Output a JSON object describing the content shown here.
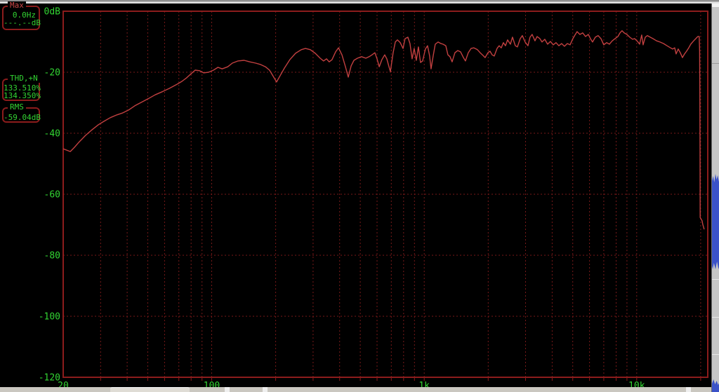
{
  "colors": {
    "background": "#000000",
    "grid": "#781919",
    "border": "#8c1c1c",
    "curve": "#c24040",
    "label_green": "#32d332",
    "label_red": "#cc4747",
    "sliver_blue": "#3b52c8"
  },
  "info_boxes": {
    "max": {
      "label": "Max",
      "freq": "0.0Hz",
      "level": "---.--dB"
    },
    "thd": {
      "label": "THD,+N",
      "value1": "133.510%",
      "value2": "134.350%"
    },
    "rms": {
      "label": "RMS",
      "value": "-59.04dB"
    }
  },
  "chart_data": {
    "type": "line",
    "title": "",
    "x_scale": "log",
    "xlim": [
      20,
      21600
    ],
    "ylim": [
      -120,
      0
    ],
    "grid": "dotted",
    "x_ticks": [
      {
        "f": 20,
        "label": "20"
      },
      {
        "f": 100,
        "label": "100"
      },
      {
        "f": 1000,
        "label": "1k"
      },
      {
        "f": 10000,
        "label": "10k"
      }
    ],
    "y_ticks": [
      {
        "db": 0,
        "label": "0dB"
      },
      {
        "db": -20,
        "label": "-20"
      },
      {
        "db": -40,
        "label": "-40"
      },
      {
        "db": -60,
        "label": "-60"
      },
      {
        "db": -80,
        "label": "-80"
      },
      {
        "db": -100,
        "label": "-100"
      },
      {
        "db": -120,
        "label": "-120"
      }
    ],
    "v_gridlines": [
      30,
      40,
      50,
      60,
      70,
      80,
      90,
      100,
      200,
      300,
      400,
      500,
      600,
      700,
      800,
      900,
      1000,
      2000,
      3000,
      4000,
      5000,
      6000,
      7000,
      8000,
      9000,
      10000,
      20000
    ],
    "h_gridlines": [
      -20,
      -40,
      -60,
      -80,
      -100
    ],
    "series": [
      {
        "name": "spectrum",
        "points": [
          [
            20,
            -45.1
          ],
          [
            21.6,
            -46.0
          ],
          [
            22.6,
            -44.6
          ],
          [
            23.8,
            -42.8
          ],
          [
            25.5,
            -40.7
          ],
          [
            27.3,
            -38.9
          ],
          [
            29.3,
            -37.2
          ],
          [
            31.1,
            -36.1
          ],
          [
            33.3,
            -34.9
          ],
          [
            35.7,
            -34.0
          ],
          [
            38.2,
            -33.3
          ],
          [
            40.6,
            -32.4
          ],
          [
            43.5,
            -31.0
          ],
          [
            46.5,
            -29.9
          ],
          [
            50.2,
            -28.7
          ],
          [
            54.2,
            -27.4
          ],
          [
            58.5,
            -26.4
          ],
          [
            63.1,
            -25.3
          ],
          [
            68.1,
            -24.1
          ],
          [
            72.4,
            -23.0
          ],
          [
            76.3,
            -21.8
          ],
          [
            79.9,
            -20.5
          ],
          [
            83.6,
            -19.3
          ],
          [
            87.5,
            -19.5
          ],
          [
            91.6,
            -20.2
          ],
          [
            96.6,
            -20.0
          ],
          [
            102,
            -19.3
          ],
          [
            107,
            -18.4
          ],
          [
            112,
            -18.9
          ],
          [
            119,
            -18.2
          ],
          [
            125,
            -17.0
          ],
          [
            133,
            -16.3
          ],
          [
            142,
            -16.1
          ],
          [
            151,
            -16.6
          ],
          [
            161,
            -17.0
          ],
          [
            170,
            -17.5
          ],
          [
            179,
            -18.2
          ],
          [
            187,
            -19.3
          ],
          [
            195,
            -21.4
          ],
          [
            202,
            -23.2
          ],
          [
            210,
            -21.1
          ],
          [
            220,
            -18.6
          ],
          [
            233,
            -15.9
          ],
          [
            248,
            -13.8
          ],
          [
            264,
            -12.6
          ],
          [
            276,
            -12.2
          ],
          [
            291,
            -12.6
          ],
          [
            307,
            -13.8
          ],
          [
            324,
            -15.4
          ],
          [
            336,
            -16.3
          ],
          [
            347,
            -15.6
          ],
          [
            357,
            -16.6
          ],
          [
            368,
            -15.9
          ],
          [
            383,
            -13.3
          ],
          [
            395,
            -12.0
          ],
          [
            410,
            -14.3
          ],
          [
            426,
            -18.2
          ],
          [
            439,
            -21.6
          ],
          [
            453,
            -17.9
          ],
          [
            467,
            -16.1
          ],
          [
            485,
            -15.4
          ],
          [
            507,
            -14.9
          ],
          [
            531,
            -15.4
          ],
          [
            551,
            -14.9
          ],
          [
            568,
            -14.3
          ],
          [
            586,
            -13.6
          ],
          [
            600,
            -15.6
          ],
          [
            614,
            -18.2
          ],
          [
            632,
            -15.9
          ],
          [
            652,
            -14.3
          ],
          [
            667,
            -15.6
          ],
          [
            683,
            -18.2
          ],
          [
            693,
            -19.8
          ],
          [
            714,
            -13.6
          ],
          [
            731,
            -10.1
          ],
          [
            748,
            -9.4
          ],
          [
            771,
            -10.3
          ],
          [
            795,
            -12.2
          ],
          [
            813,
            -9.0
          ],
          [
            838,
            -8.5
          ],
          [
            857,
            -10.6
          ],
          [
            877,
            -15.6
          ],
          [
            897,
            -12.2
          ],
          [
            918,
            -16.1
          ],
          [
            939,
            -11.7
          ],
          [
            961,
            -16.8
          ],
          [
            983,
            -16.3
          ],
          [
            1013,
            -12.4
          ],
          [
            1037,
            -11.3
          ],
          [
            1061,
            -14.7
          ],
          [
            1077,
            -18.9
          ],
          [
            1102,
            -14.7
          ],
          [
            1127,
            -10.8
          ],
          [
            1162,
            -10.1
          ],
          [
            1198,
            -10.6
          ],
          [
            1226,
            -10.8
          ],
          [
            1264,
            -11.3
          ],
          [
            1293,
            -14.3
          ],
          [
            1323,
            -14.9
          ],
          [
            1353,
            -16.6
          ],
          [
            1395,
            -13.6
          ],
          [
            1438,
            -12.9
          ],
          [
            1483,
            -13.3
          ],
          [
            1529,
            -15.2
          ],
          [
            1564,
            -16.3
          ],
          [
            1612,
            -13.6
          ],
          [
            1662,
            -12.2
          ],
          [
            1713,
            -12.0
          ],
          [
            1780,
            -12.6
          ],
          [
            1835,
            -13.6
          ],
          [
            1892,
            -14.5
          ],
          [
            1935,
            -15.2
          ],
          [
            1995,
            -13.6
          ],
          [
            2041,
            -13.1
          ],
          [
            2088,
            -14.3
          ],
          [
            2136,
            -14.7
          ],
          [
            2202,
            -12.2
          ],
          [
            2253,
            -11.3
          ],
          [
            2305,
            -12.0
          ],
          [
            2358,
            -10.3
          ],
          [
            2413,
            -11.3
          ],
          [
            2468,
            -9.4
          ],
          [
            2545,
            -10.8
          ],
          [
            2603,
            -8.5
          ],
          [
            2684,
            -11.3
          ],
          [
            2746,
            -11.7
          ],
          [
            2831,
            -9.0
          ],
          [
            2896,
            -8.0
          ],
          [
            2985,
            -10.1
          ],
          [
            3078,
            -11.3
          ],
          [
            3149,
            -8.5
          ],
          [
            3222,
            -7.6
          ],
          [
            3321,
            -9.7
          ],
          [
            3398,
            -8.3
          ],
          [
            3503,
            -9.0
          ],
          [
            3584,
            -10.1
          ],
          [
            3695,
            -9.2
          ],
          [
            3809,
            -10.8
          ],
          [
            3926,
            -9.9
          ],
          [
            4048,
            -11.0
          ],
          [
            4173,
            -10.3
          ],
          [
            4302,
            -11.3
          ],
          [
            4434,
            -10.6
          ],
          [
            4571,
            -11.5
          ],
          [
            4712,
            -10.6
          ],
          [
            4859,
            -11.0
          ],
          [
            5009,
            -9.0
          ],
          [
            5124,
            -7.8
          ],
          [
            5242,
            -6.7
          ],
          [
            5404,
            -7.6
          ],
          [
            5571,
            -7.1
          ],
          [
            5744,
            -8.3
          ],
          [
            5922,
            -7.6
          ],
          [
            6057,
            -9.0
          ],
          [
            6197,
            -10.1
          ],
          [
            6389,
            -8.5
          ],
          [
            6586,
            -8.0
          ],
          [
            6792,
            -9.0
          ],
          [
            7001,
            -11.0
          ],
          [
            7218,
            -10.3
          ],
          [
            7441,
            -10.8
          ],
          [
            7672,
            -9.7
          ],
          [
            7909,
            -9.0
          ],
          [
            8154,
            -8.3
          ],
          [
            8342,
            -7.1
          ],
          [
            8532,
            -6.4
          ],
          [
            8727,
            -7.1
          ],
          [
            8997,
            -7.6
          ],
          [
            9276,
            -8.5
          ],
          [
            9563,
            -9.2
          ],
          [
            9784,
            -9.0
          ],
          [
            10090,
            -9.9
          ],
          [
            10320,
            -10.8
          ],
          [
            10560,
            -7.8
          ],
          [
            10720,
            -11.0
          ],
          [
            10970,
            -8.5
          ],
          [
            11220,
            -8.0
          ],
          [
            11570,
            -8.5
          ],
          [
            11930,
            -9.0
          ],
          [
            12390,
            -9.7
          ],
          [
            12870,
            -10.1
          ],
          [
            13370,
            -10.6
          ],
          [
            13880,
            -11.3
          ],
          [
            14420,
            -12.0
          ],
          [
            14750,
            -12.4
          ],
          [
            15090,
            -12.0
          ],
          [
            15330,
            -14.0
          ],
          [
            15680,
            -12.4
          ],
          [
            16040,
            -13.6
          ],
          [
            16410,
            -15.2
          ],
          [
            16790,
            -14.0
          ],
          [
            17170,
            -13.1
          ],
          [
            17570,
            -12.0
          ],
          [
            17970,
            -10.8
          ],
          [
            18530,
            -9.7
          ],
          [
            18960,
            -9.0
          ],
          [
            19390,
            -8.3
          ],
          [
            19690,
            -8.3
          ],
          [
            19780,
            -13.0
          ],
          [
            19820,
            -25.0
          ],
          [
            19860,
            -45.0
          ],
          [
            19890,
            -67.6
          ],
          [
            20310,
            -68.7
          ],
          [
            20460,
            -69.9
          ],
          [
            20780,
            -71.5
          ]
        ]
      }
    ]
  }
}
